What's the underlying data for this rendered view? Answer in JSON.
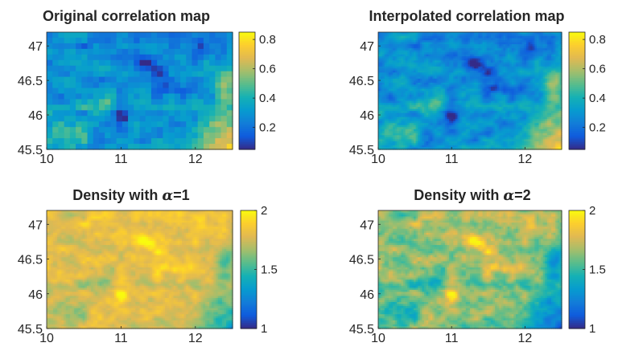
{
  "chart_data": [
    {
      "type": "heatmap",
      "title": "Original correlation map",
      "xlabel": "",
      "ylabel": "",
      "xlim": [
        10,
        12.5
      ],
      "ylim": [
        45.5,
        47.2
      ],
      "x_ticks": [
        "10",
        "11",
        "12"
      ],
      "y_ticks": [
        "45.5",
        "46",
        "46.5",
        "47"
      ],
      "colorbar": {
        "min": 0.05,
        "max": 0.85,
        "ticks": [
          "0.2",
          "0.4",
          "0.6",
          "0.8"
        ],
        "colormap": "parula"
      },
      "grid_resolution": "coarse (pixelated)",
      "regions": [
        {
          "x": 11.3,
          "y": 46.75,
          "value": 0.1
        },
        {
          "x": 12.1,
          "y": 46.95,
          "value": 0.1
        },
        {
          "x": 11.0,
          "y": 46.0,
          "value": 0.12
        },
        {
          "x": 12.3,
          "y": 45.9,
          "value": 0.8
        },
        {
          "x": 12.45,
          "y": 46.5,
          "value": 0.7
        },
        {
          "x": 10.2,
          "y": 45.7,
          "value": 0.55
        }
      ]
    },
    {
      "type": "heatmap",
      "title": "Interpolated correlation map",
      "xlabel": "",
      "ylabel": "",
      "xlim": [
        10,
        12.5
      ],
      "ylim": [
        45.5,
        47.2
      ],
      "x_ticks": [
        "10",
        "11",
        "12"
      ],
      "y_ticks": [
        "45.5",
        "46",
        "46.5",
        "47"
      ],
      "colorbar": {
        "min": 0.05,
        "max": 0.85,
        "ticks": [
          "0.2",
          "0.4",
          "0.6",
          "0.8"
        ],
        "colormap": "parula"
      },
      "grid_resolution": "fine (smooth)",
      "regions": [
        {
          "x": 11.3,
          "y": 46.75,
          "value": 0.1
        },
        {
          "x": 12.1,
          "y": 46.95,
          "value": 0.1
        },
        {
          "x": 11.0,
          "y": 46.0,
          "value": 0.12
        },
        {
          "x": 12.3,
          "y": 45.9,
          "value": 0.8
        },
        {
          "x": 12.45,
          "y": 46.5,
          "value": 0.7
        },
        {
          "x": 10.2,
          "y": 45.7,
          "value": 0.55
        }
      ]
    },
    {
      "type": "heatmap",
      "title": "Density with α=1",
      "title_text": "Density with ",
      "title_symbol": "α",
      "title_suffix": "=1",
      "xlabel": "",
      "ylabel": "",
      "xlim": [
        10,
        12.5
      ],
      "ylim": [
        45.5,
        47.2
      ],
      "x_ticks": [
        "10",
        "11",
        "12"
      ],
      "y_ticks": [
        "45.5",
        "46",
        "46.5",
        "47"
      ],
      "colorbar": {
        "min": 1,
        "max": 2,
        "ticks": [
          "1",
          "1.5",
          "2"
        ],
        "colormap": "parula"
      },
      "grid_resolution": "fine (smooth)",
      "regions": [
        {
          "x": 11.3,
          "y": 46.75,
          "value": 1.95
        },
        {
          "x": 12.1,
          "y": 46.95,
          "value": 1.95
        },
        {
          "x": 11.0,
          "y": 46.0,
          "value": 1.9
        },
        {
          "x": 12.3,
          "y": 45.9,
          "value": 1.2
        },
        {
          "x": 12.45,
          "y": 46.5,
          "value": 1.3
        }
      ]
    },
    {
      "type": "heatmap",
      "title": "Density with α=2",
      "title_text": "Density with ",
      "title_symbol": "α",
      "title_suffix": "=2",
      "xlabel": "",
      "ylabel": "",
      "xlim": [
        10,
        12.5
      ],
      "ylim": [
        45.5,
        47.2
      ],
      "x_ticks": [
        "10",
        "11",
        "12"
      ],
      "y_ticks": [
        "45.5",
        "46",
        "46.5",
        "47"
      ],
      "colorbar": {
        "min": 1,
        "max": 2,
        "ticks": [
          "1",
          "1.5",
          "2"
        ],
        "colormap": "parula"
      },
      "grid_resolution": "fine (smooth)",
      "regions": [
        {
          "x": 11.3,
          "y": 46.75,
          "value": 1.95
        },
        {
          "x": 12.1,
          "y": 46.95,
          "value": 1.95
        },
        {
          "x": 11.0,
          "y": 46.0,
          "value": 1.85
        },
        {
          "x": 12.3,
          "y": 45.9,
          "value": 1.05
        },
        {
          "x": 12.45,
          "y": 46.5,
          "value": 1.1
        }
      ]
    }
  ]
}
